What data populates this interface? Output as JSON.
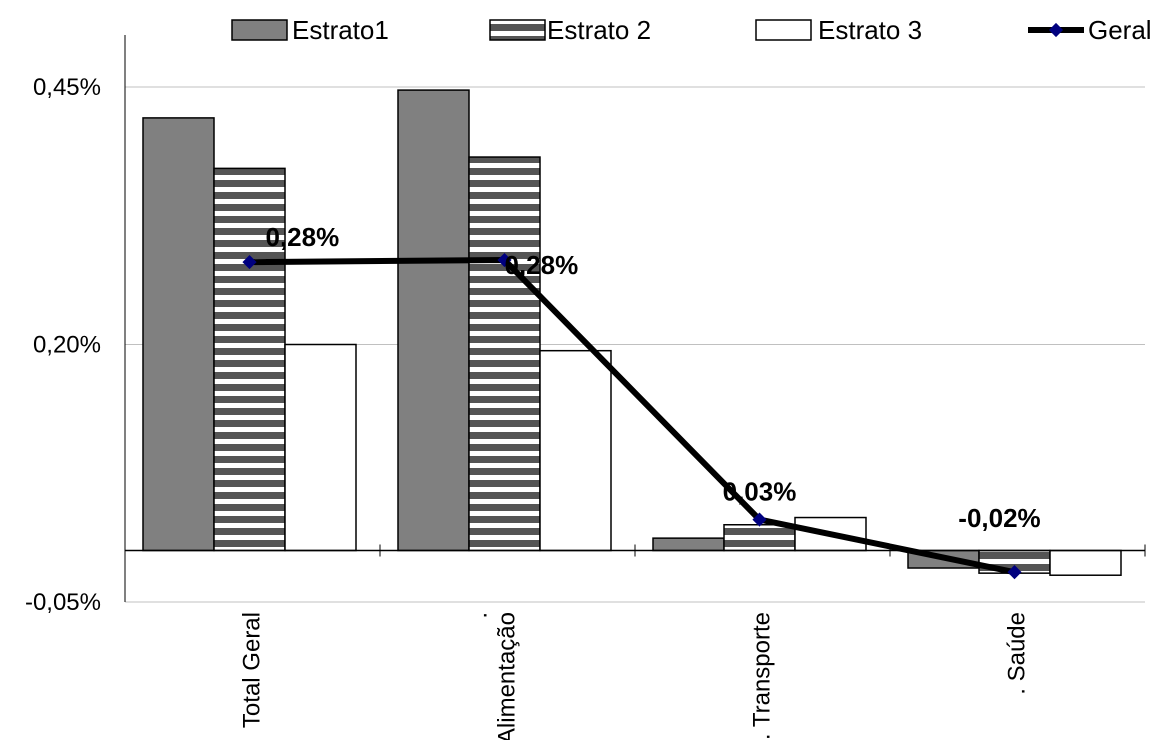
{
  "chart_data": {
    "type": "bar",
    "title": "",
    "xlabel": "",
    "ylabel": "",
    "categories": [
      "Total Geral",
      ". Alimentação",
      ". Transporte",
      ". Saúde"
    ],
    "category_labels": [
      [
        "Total Geral"
      ],
      [
        ".",
        "Alimentação"
      ],
      [
        ". Transporte"
      ],
      [
        ". Saúde"
      ]
    ],
    "series": [
      {
        "name": "Estrato1",
        "type": "bar",
        "values": [
          0.42,
          0.447,
          0.012,
          -0.017
        ]
      },
      {
        "name": "Estrato 2",
        "type": "bar",
        "values": [
          0.371,
          0.382,
          0.025,
          -0.022
        ]
      },
      {
        "name": "Estrato 3",
        "type": "bar",
        "values": [
          0.2,
          0.194,
          0.032,
          -0.024
        ]
      },
      {
        "name": "Geral",
        "type": "line",
        "values": [
          0.28,
          0.282,
          0.03,
          -0.021
        ]
      }
    ],
    "data_labels": [
      "0,28%",
      "0,28%",
      "0,03%",
      "-0,02%"
    ],
    "ylim": [
      -0.05,
      0.45
    ],
    "yticks": [
      -0.05,
      0.2,
      0.45
    ],
    "ytick_labels": [
      "-0,05%",
      "0,20%",
      "0,45%"
    ],
    "grid": true,
    "legend_position": "top",
    "colors": {
      "estrato1": "#808080",
      "estrato2_stripe": "#555555",
      "estrato3": "#ffffff",
      "geral_line": "#000000",
      "geral_marker": "#00007f",
      "grid": "#c0c0c0"
    }
  }
}
